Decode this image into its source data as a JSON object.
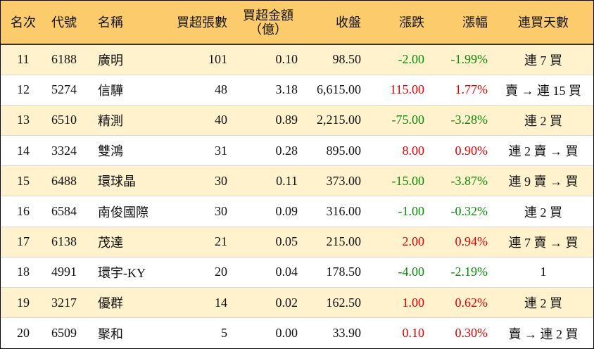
{
  "table": {
    "header": [
      "名次",
      "代號",
      "名稱",
      "買超張數",
      "買超金額\n（億）",
      "收盤",
      "漲跌",
      "漲幅",
      "連買天數"
    ],
    "rows": [
      [
        "11",
        "6188",
        "廣明",
        "101",
        "0.10",
        "98.50",
        "-2.00",
        "-1.99%",
        "連 7 買"
      ],
      [
        "12",
        "5274",
        "信驊",
        "48",
        "3.18",
        "6,615.00",
        "115.00",
        "1.77%",
        "賣 → 連 15 買"
      ],
      [
        "13",
        "6510",
        "精測",
        "40",
        "0.89",
        "2,215.00",
        "-75.00",
        "-3.28%",
        "連 2 買"
      ],
      [
        "14",
        "3324",
        "雙鴻",
        "31",
        "0.28",
        "895.00",
        "8.00",
        "0.90%",
        "連 2 賣 → 買"
      ],
      [
        "15",
        "6488",
        "環球晶",
        "30",
        "0.11",
        "373.00",
        "-15.00",
        "-3.87%",
        "連 9 賣 → 買"
      ],
      [
        "16",
        "6584",
        "南俊國際",
        "30",
        "0.09",
        "316.00",
        "-1.00",
        "-0.32%",
        "連 2 買"
      ],
      [
        "17",
        "6138",
        "茂達",
        "21",
        "0.05",
        "215.00",
        "2.00",
        "0.94%",
        "連 7 賣 → 買"
      ],
      [
        "18",
        "4991",
        "環宇-KY",
        "20",
        "0.04",
        "178.50",
        "-4.00",
        "-2.19%",
        "1"
      ],
      [
        "19",
        "3217",
        "優群",
        "14",
        "0.02",
        "162.50",
        "1.00",
        "0.62%",
        "連 2 買"
      ],
      [
        "20",
        "6509",
        "聚和",
        "5",
        "0.00",
        "33.90",
        "0.10",
        "0.30%",
        "賣 → 連 2 買"
      ]
    ]
  }
}
